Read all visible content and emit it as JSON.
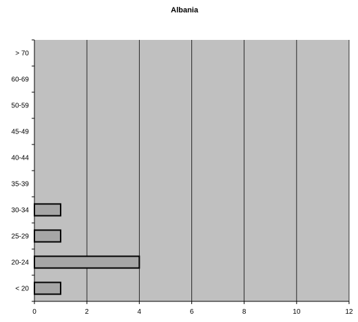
{
  "chart_data": {
    "type": "bar",
    "orientation": "horizontal",
    "title": "Albania",
    "xlabel": "",
    "ylabel": "",
    "categories": [
      "< 20",
      "20-24",
      "25-29",
      "30-34",
      "35-39",
      "40-44",
      "45-49",
      "50-59",
      "60-69",
      "> 70"
    ],
    "values": [
      1,
      4,
      1,
      1,
      0,
      0,
      0,
      0,
      0,
      0
    ],
    "xlim": [
      0,
      12
    ],
    "x_ticks": [
      0,
      2,
      4,
      6,
      8,
      10,
      12
    ],
    "grid": "vertical",
    "legend": "none",
    "colors": {
      "plot_background": "#c0c0c0",
      "bar_fill": "#a6a6a6",
      "bar_stroke": "#000000",
      "grid": "#000000"
    }
  }
}
